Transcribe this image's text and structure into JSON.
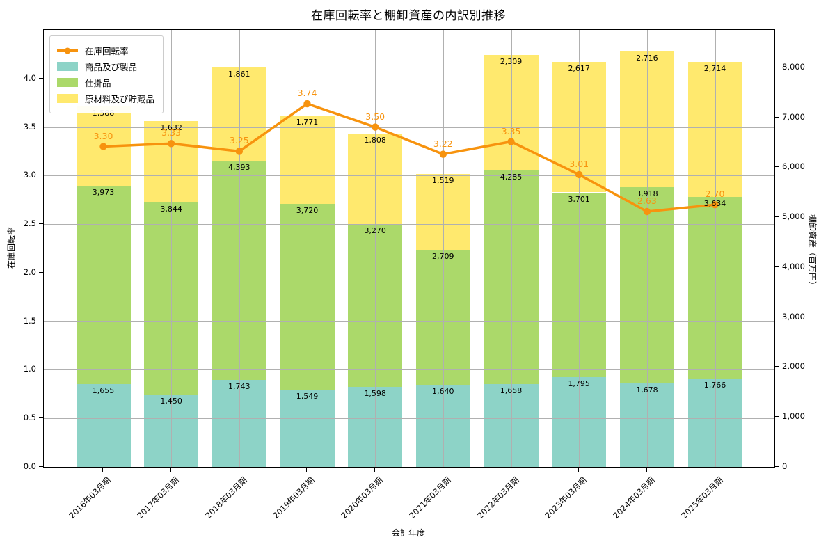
{
  "title": "在庫回転率と棚卸資産の内訳別推移",
  "chart_data": {
    "type": "bar",
    "subtype": "stacked-bar-with-line-overlay",
    "title": "在庫回転率と棚卸資産の内訳別推移",
    "categories": [
      "2016年03月期",
      "2017年03月期",
      "2018年03月期",
      "2019年03月期",
      "2020年03月期",
      "2021年03月期",
      "2022年03月期",
      "2023年03月期",
      "2024年03月期",
      "2025年03月期"
    ],
    "series": [
      {
        "name": "商品及び製品",
        "type": "bar",
        "axis": "right",
        "color": "#8dd3c7",
        "values": [
          1655,
          1450,
          1743,
          1549,
          1598,
          1640,
          1658,
          1795,
          1678,
          1766
        ]
      },
      {
        "name": "仕掛品",
        "type": "bar",
        "axis": "right",
        "color": "#abd96a",
        "values": [
          3973,
          3844,
          4393,
          3720,
          3270,
          2709,
          4285,
          3701,
          3918,
          3634
        ]
      },
      {
        "name": "原材料及び貯蔵品",
        "type": "bar",
        "axis": "right",
        "color": "#ffe96e",
        "values": [
          1588,
          1632,
          1861,
          1771,
          1808,
          1519,
          2309,
          2617,
          2716,
          2714
        ]
      },
      {
        "name": "在庫回転率",
        "type": "line",
        "axis": "left",
        "color": "#f7930e",
        "values": [
          3.3,
          3.33,
          3.25,
          3.74,
          3.5,
          3.22,
          3.35,
          3.01,
          2.63,
          2.7
        ]
      }
    ],
    "xlabel": "会計年度",
    "ylabel_left": "在庫回転率",
    "ylabel_right": "棚卸資産（百万円）",
    "ylim_left": [
      0,
      4.5
    ],
    "ylim_right": [
      0,
      8750
    ],
    "left_ticks": [
      0,
      0.5,
      1,
      1.5,
      2,
      2.5,
      3,
      3.5,
      4
    ],
    "right_ticks": [
      0,
      1000,
      2000,
      3000,
      4000,
      5000,
      6000,
      7000,
      8000
    ],
    "grid": true,
    "legend_position": "upper left"
  }
}
